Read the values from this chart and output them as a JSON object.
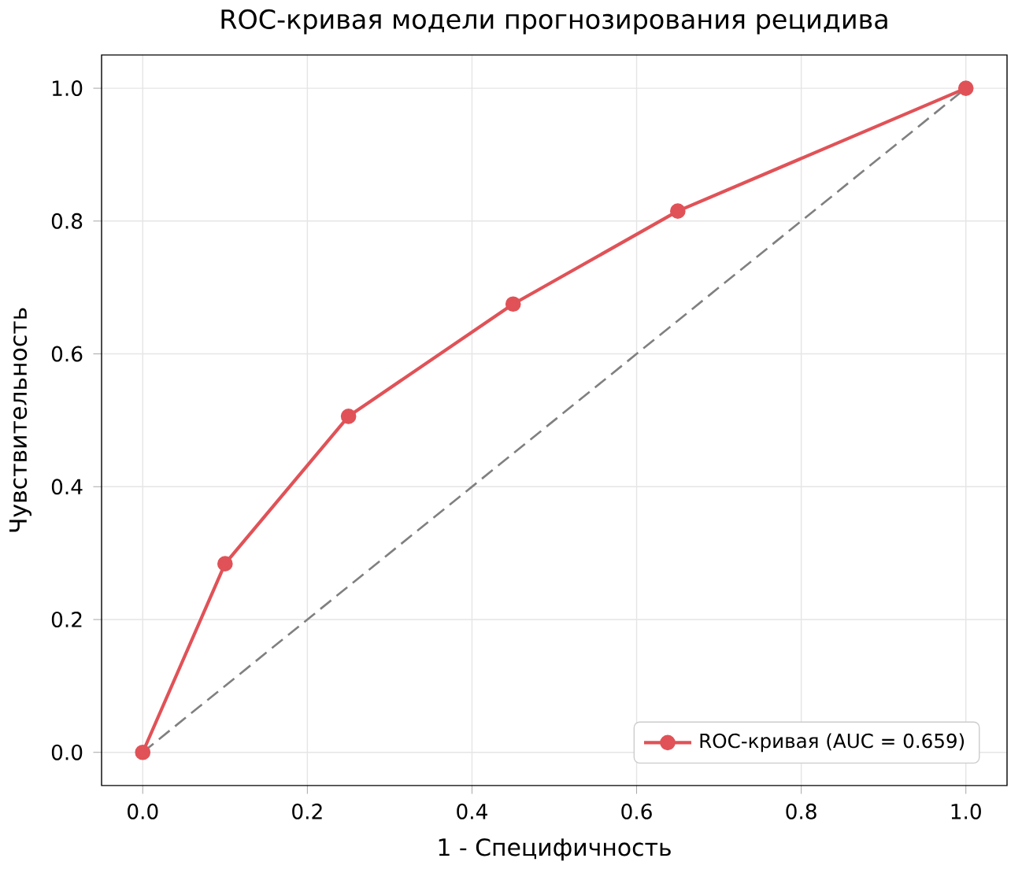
{
  "chart_data": {
    "type": "line",
    "title": "ROC-кривая модели прогнозирования рецидива",
    "xlabel": "1 - Специфичность",
    "ylabel": "Чувствительность",
    "series": [
      {
        "name": "ROC-кривая (AUC = 0.659)",
        "color": "#e05257",
        "x": [
          0,
          0.1,
          0.25,
          0.45,
          0.65,
          1.0
        ],
        "values": [
          0,
          0.284,
          0.506,
          0.675,
          0.815,
          1.0
        ],
        "marker": "circle",
        "line_style": "solid"
      },
      {
        "color": "#808080",
        "x": [
          0,
          1
        ],
        "values": [
          0,
          1
        ],
        "marker": "none",
        "line_style": "dashed"
      }
    ],
    "xlim": [
      -0.05,
      1.05
    ],
    "ylim": [
      -0.05,
      1.05
    ],
    "xticks": [
      {
        "value": 0,
        "label": "0.0"
      },
      {
        "value": 0.2,
        "label": "0.2"
      },
      {
        "value": 0.4,
        "label": "0.4"
      },
      {
        "value": 0.6,
        "label": "0.6"
      },
      {
        "value": 0.8,
        "label": "0.8"
      },
      {
        "value": 1.0,
        "label": "1.0"
      }
    ],
    "yticks": [
      {
        "value": 0,
        "label": "0.0"
      },
      {
        "value": 0.2,
        "label": "0.2"
      },
      {
        "value": 0.4,
        "label": "0.4"
      },
      {
        "value": 0.6,
        "label": "0.6"
      },
      {
        "value": 0.8,
        "label": "0.8"
      },
      {
        "value": 1.0,
        "label": "1.0"
      }
    ],
    "grid": true,
    "legend": "bottom right"
  }
}
